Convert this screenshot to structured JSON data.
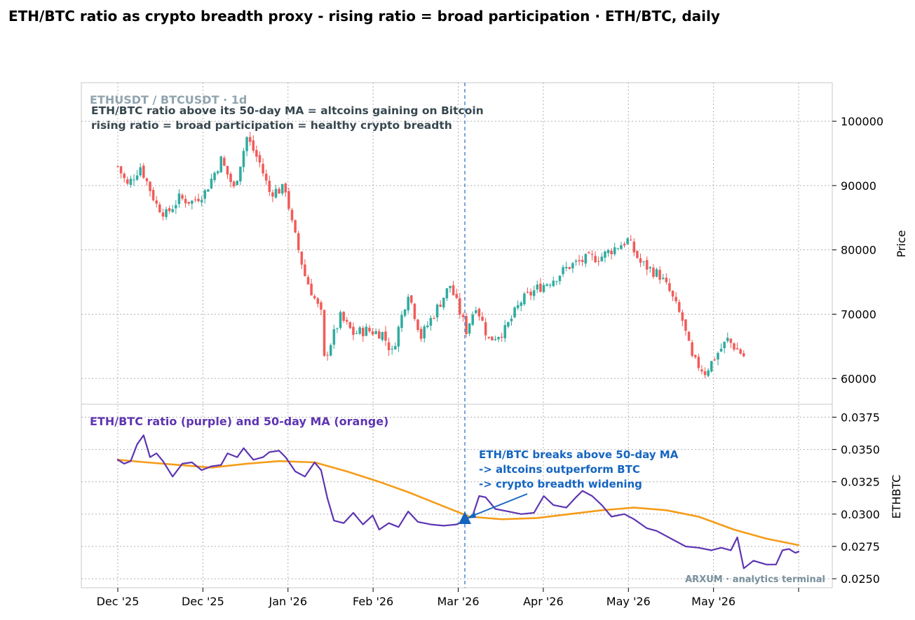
{
  "title": "ETH/BTC ratio as crypto breadth proxy - rising ratio = broad participation  ·  ETH/BTC, daily",
  "colors": {
    "up": "#26a69a",
    "down": "#ef5350",
    "ratio": "#5e35b1",
    "ma": "#f59c1a",
    "signal": "#1565c0",
    "grid": "#b0b0b0",
    "text_dark": "#37474f",
    "watermark": "#78909c"
  },
  "top_panel": {
    "symbol_label": "ETHUSDT / BTCUSDT · 1d",
    "note_line1": "ETH/BTC ratio above its 50-day MA = altcoins gaining on Bitcoin",
    "note_line2": "rising ratio = broad participation = healthy crypto breadth",
    "ylabel": "Price",
    "yticks": [
      "60000",
      "70000",
      "80000",
      "90000",
      "100000"
    ]
  },
  "bottom_panel": {
    "label": "ETH/BTC ratio (purple) and 50-day MA (orange)",
    "ylabel": "ETHBTC",
    "yticks": [
      "0.0250",
      "0.0275",
      "0.0300",
      "0.0325",
      "0.0350",
      "0.0375"
    ],
    "annotation_line1": "ETH/BTC breaks above 50-day MA",
    "annotation_line2": "-> altcoins outperform BTC",
    "annotation_line3": "-> crypto breadth widening",
    "watermark": "ARXUM · analytics terminal"
  },
  "xticks": [
    "Dec '25",
    "Dec '25",
    "Jan '26",
    "Feb '26",
    "Mar '26",
    "Apr '26",
    "May '26",
    "May '26"
  ],
  "chart_data": [
    {
      "type": "candlestick",
      "title": "ETHUSDT / BTCUSDT · 1d",
      "ylabel": "Price",
      "ylim": [
        56000,
        106000
      ],
      "grid": true,
      "x_start": "2025-12-01",
      "x_end": "2026-05-27",
      "close_keypoints": [
        [
          "2025-12-01",
          93000
        ],
        [
          "2025-12-04",
          90000
        ],
        [
          "2025-12-08",
          93000
        ],
        [
          "2025-12-13",
          87000
        ],
        [
          "2025-12-16",
          85500
        ],
        [
          "2025-12-20",
          88000
        ],
        [
          "2025-12-24",
          87500
        ],
        [
          "2025-12-28",
          89000
        ],
        [
          "2026-01-02",
          94000
        ],
        [
          "2026-01-06",
          89500
        ],
        [
          "2026-01-10",
          97500
        ],
        [
          "2026-01-14",
          93500
        ],
        [
          "2026-01-17",
          89000
        ],
        [
          "2026-01-22",
          89500
        ],
        [
          "2026-01-24",
          84000
        ],
        [
          "2026-01-28",
          76000
        ],
        [
          "2026-02-02",
          70000
        ],
        [
          "2026-02-03",
          63000
        ],
        [
          "2026-02-08",
          69500
        ],
        [
          "2026-02-12",
          67000
        ],
        [
          "2026-02-16",
          67500
        ],
        [
          "2026-02-21",
          67000
        ],
        [
          "2026-02-24",
          64000
        ],
        [
          "2026-03-01",
          73500
        ],
        [
          "2026-03-05",
          66500
        ],
        [
          "2026-03-10",
          71000
        ],
        [
          "2026-03-14",
          74500
        ],
        [
          "2026-03-19",
          67500
        ],
        [
          "2026-03-22",
          71500
        ],
        [
          "2026-03-26",
          66000
        ],
        [
          "2026-03-31",
          67500
        ],
        [
          "2026-04-05",
          72000
        ],
        [
          "2026-04-10",
          74000
        ],
        [
          "2026-04-15",
          75500
        ],
        [
          "2026-04-20",
          77500
        ],
        [
          "2026-04-25",
          78500
        ],
        [
          "2026-04-30",
          79000
        ],
        [
          "2026-05-03",
          80000
        ],
        [
          "2026-05-08",
          81500
        ],
        [
          "2026-05-12",
          78000
        ],
        [
          "2026-05-15",
          77000
        ],
        [
          "2026-05-18",
          76000
        ],
        [
          "2026-05-21",
          73500
        ],
        [
          "2026-05-25",
          69000
        ],
        [
          "2026-05-28",
          63000
        ],
        [
          "2026-06-01",
          61000
        ],
        [
          "2026-06-05",
          64000
        ],
        [
          "2026-06-08",
          66000
        ],
        [
          "2026-06-13",
          63500
        ]
      ]
    },
    {
      "type": "line",
      "title": "ETH/BTC ratio (purple) and 50-day MA (orange)",
      "ylabel": "ETHBTC",
      "ylim": [
        0.0243,
        0.0385
      ],
      "grid": true,
      "series": [
        {
          "name": "ETH/BTC ratio",
          "color": "#5e35b1",
          "values": [
            [
              "2025-12-01",
              0.0342
            ],
            [
              "2025-12-03",
              0.0339
            ],
            [
              "2025-12-05",
              0.0341
            ],
            [
              "2025-12-07",
              0.0354
            ],
            [
              "2025-12-09",
              0.0361
            ],
            [
              "2025-12-11",
              0.0344
            ],
            [
              "2025-12-13",
              0.0347
            ],
            [
              "2025-12-15",
              0.0341
            ],
            [
              "2025-12-18",
              0.0329
            ],
            [
              "2025-12-21",
              0.0339
            ],
            [
              "2025-12-24",
              0.034
            ],
            [
              "2025-12-27",
              0.0334
            ],
            [
              "2025-12-30",
              0.0337
            ],
            [
              "2026-01-02",
              0.0338
            ],
            [
              "2026-01-04",
              0.0347
            ],
            [
              "2026-01-07",
              0.0344
            ],
            [
              "2026-01-09",
              0.0351
            ],
            [
              "2026-01-12",
              0.0342
            ],
            [
              "2026-01-15",
              0.0344
            ],
            [
              "2026-01-17",
              0.0348
            ],
            [
              "2026-01-20",
              0.0349
            ],
            [
              "2026-01-22",
              0.0344
            ],
            [
              "2026-01-25",
              0.0333
            ],
            [
              "2026-01-28",
              0.0329
            ],
            [
              "2026-01-31",
              0.034
            ],
            [
              "2026-02-02",
              0.0334
            ],
            [
              "2026-02-04",
              0.0312
            ],
            [
              "2026-02-06",
              0.0295
            ],
            [
              "2026-02-09",
              0.0293
            ],
            [
              "2026-02-12",
              0.0301
            ],
            [
              "2026-02-15",
              0.0292
            ],
            [
              "2026-02-18",
              0.0299
            ],
            [
              "2026-02-20",
              0.0288
            ],
            [
              "2026-02-23",
              0.0293
            ],
            [
              "2026-02-26",
              0.029
            ],
            [
              "2026-03-01",
              0.0302
            ],
            [
              "2026-03-04",
              0.0294
            ],
            [
              "2026-03-08",
              0.0292
            ],
            [
              "2026-03-12",
              0.0291
            ],
            [
              "2026-03-16",
              0.0292
            ],
            [
              "2026-03-19",
              0.0296
            ],
            [
              "2026-03-21",
              0.0299
            ],
            [
              "2026-03-23",
              0.0314
            ],
            [
              "2026-03-25",
              0.0313
            ],
            [
              "2026-03-28",
              0.0304
            ],
            [
              "2026-04-01",
              0.0302
            ],
            [
              "2026-04-05",
              0.03
            ],
            [
              "2026-04-09",
              0.0301
            ],
            [
              "2026-04-12",
              0.0314
            ],
            [
              "2026-04-15",
              0.0307
            ],
            [
              "2026-04-19",
              0.0305
            ],
            [
              "2026-04-22",
              0.0313
            ],
            [
              "2026-04-24",
              0.0318
            ],
            [
              "2026-04-27",
              0.0314
            ],
            [
              "2026-04-30",
              0.0307
            ],
            [
              "2026-05-03",
              0.0298
            ],
            [
              "2026-05-07",
              0.03
            ],
            [
              "2026-05-10",
              0.0296
            ],
            [
              "2026-05-14",
              0.0289
            ],
            [
              "2026-05-17",
              0.0287
            ],
            [
              "2026-05-20",
              0.0283
            ],
            [
              "2026-05-23",
              0.0279
            ],
            [
              "2026-05-26",
              0.0275
            ],
            [
              "2026-05-30",
              0.0274
            ],
            [
              "2026-06-03",
              0.0272
            ],
            [
              "2026-06-06",
              0.0274
            ],
            [
              "2026-06-09",
              0.0272
            ],
            [
              "2026-06-11",
              0.0282
            ],
            [
              "2026-06-13",
              0.0258
            ],
            [
              "2026-06-16",
              0.0264
            ],
            [
              "2026-06-20",
              0.0261
            ],
            [
              "2026-06-23",
              0.0261
            ],
            [
              "2026-06-25",
              0.0272
            ],
            [
              "2026-06-27",
              0.0273
            ],
            [
              "2026-06-29",
              0.027
            ],
            [
              "2026-06-30",
              0.0271
            ]
          ]
        },
        {
          "name": "50-day MA",
          "color": "#f59c1a",
          "values": [
            [
              "2025-12-01",
              0.0342
            ],
            [
              "2025-12-10",
              0.034
            ],
            [
              "2025-12-20",
              0.0338
            ],
            [
              "2025-12-30",
              0.0336
            ],
            [
              "2026-01-10",
              0.0339
            ],
            [
              "2026-01-20",
              0.0341
            ],
            [
              "2026-01-31",
              0.034
            ],
            [
              "2026-02-10",
              0.0333
            ],
            [
              "2026-02-20",
              0.0325
            ],
            [
              "2026-03-01",
              0.0317
            ],
            [
              "2026-03-10",
              0.0308
            ],
            [
              "2026-03-20",
              0.0298
            ],
            [
              "2026-03-30",
              0.0296
            ],
            [
              "2026-04-10",
              0.0297
            ],
            [
              "2026-04-20",
              0.03
            ],
            [
              "2026-04-30",
              0.0303
            ],
            [
              "2026-05-10",
              0.0305
            ],
            [
              "2026-05-20",
              0.0303
            ],
            [
              "2026-05-30",
              0.0298
            ],
            [
              "2026-06-10",
              0.0288
            ],
            [
              "2026-06-20",
              0.0281
            ],
            [
              "2026-06-30",
              0.0276
            ]
          ]
        }
      ],
      "signal": {
        "label": "ETH/BTC breaks above 50-day MA",
        "date": "2026-03-21",
        "value": 0.0299
      }
    }
  ]
}
